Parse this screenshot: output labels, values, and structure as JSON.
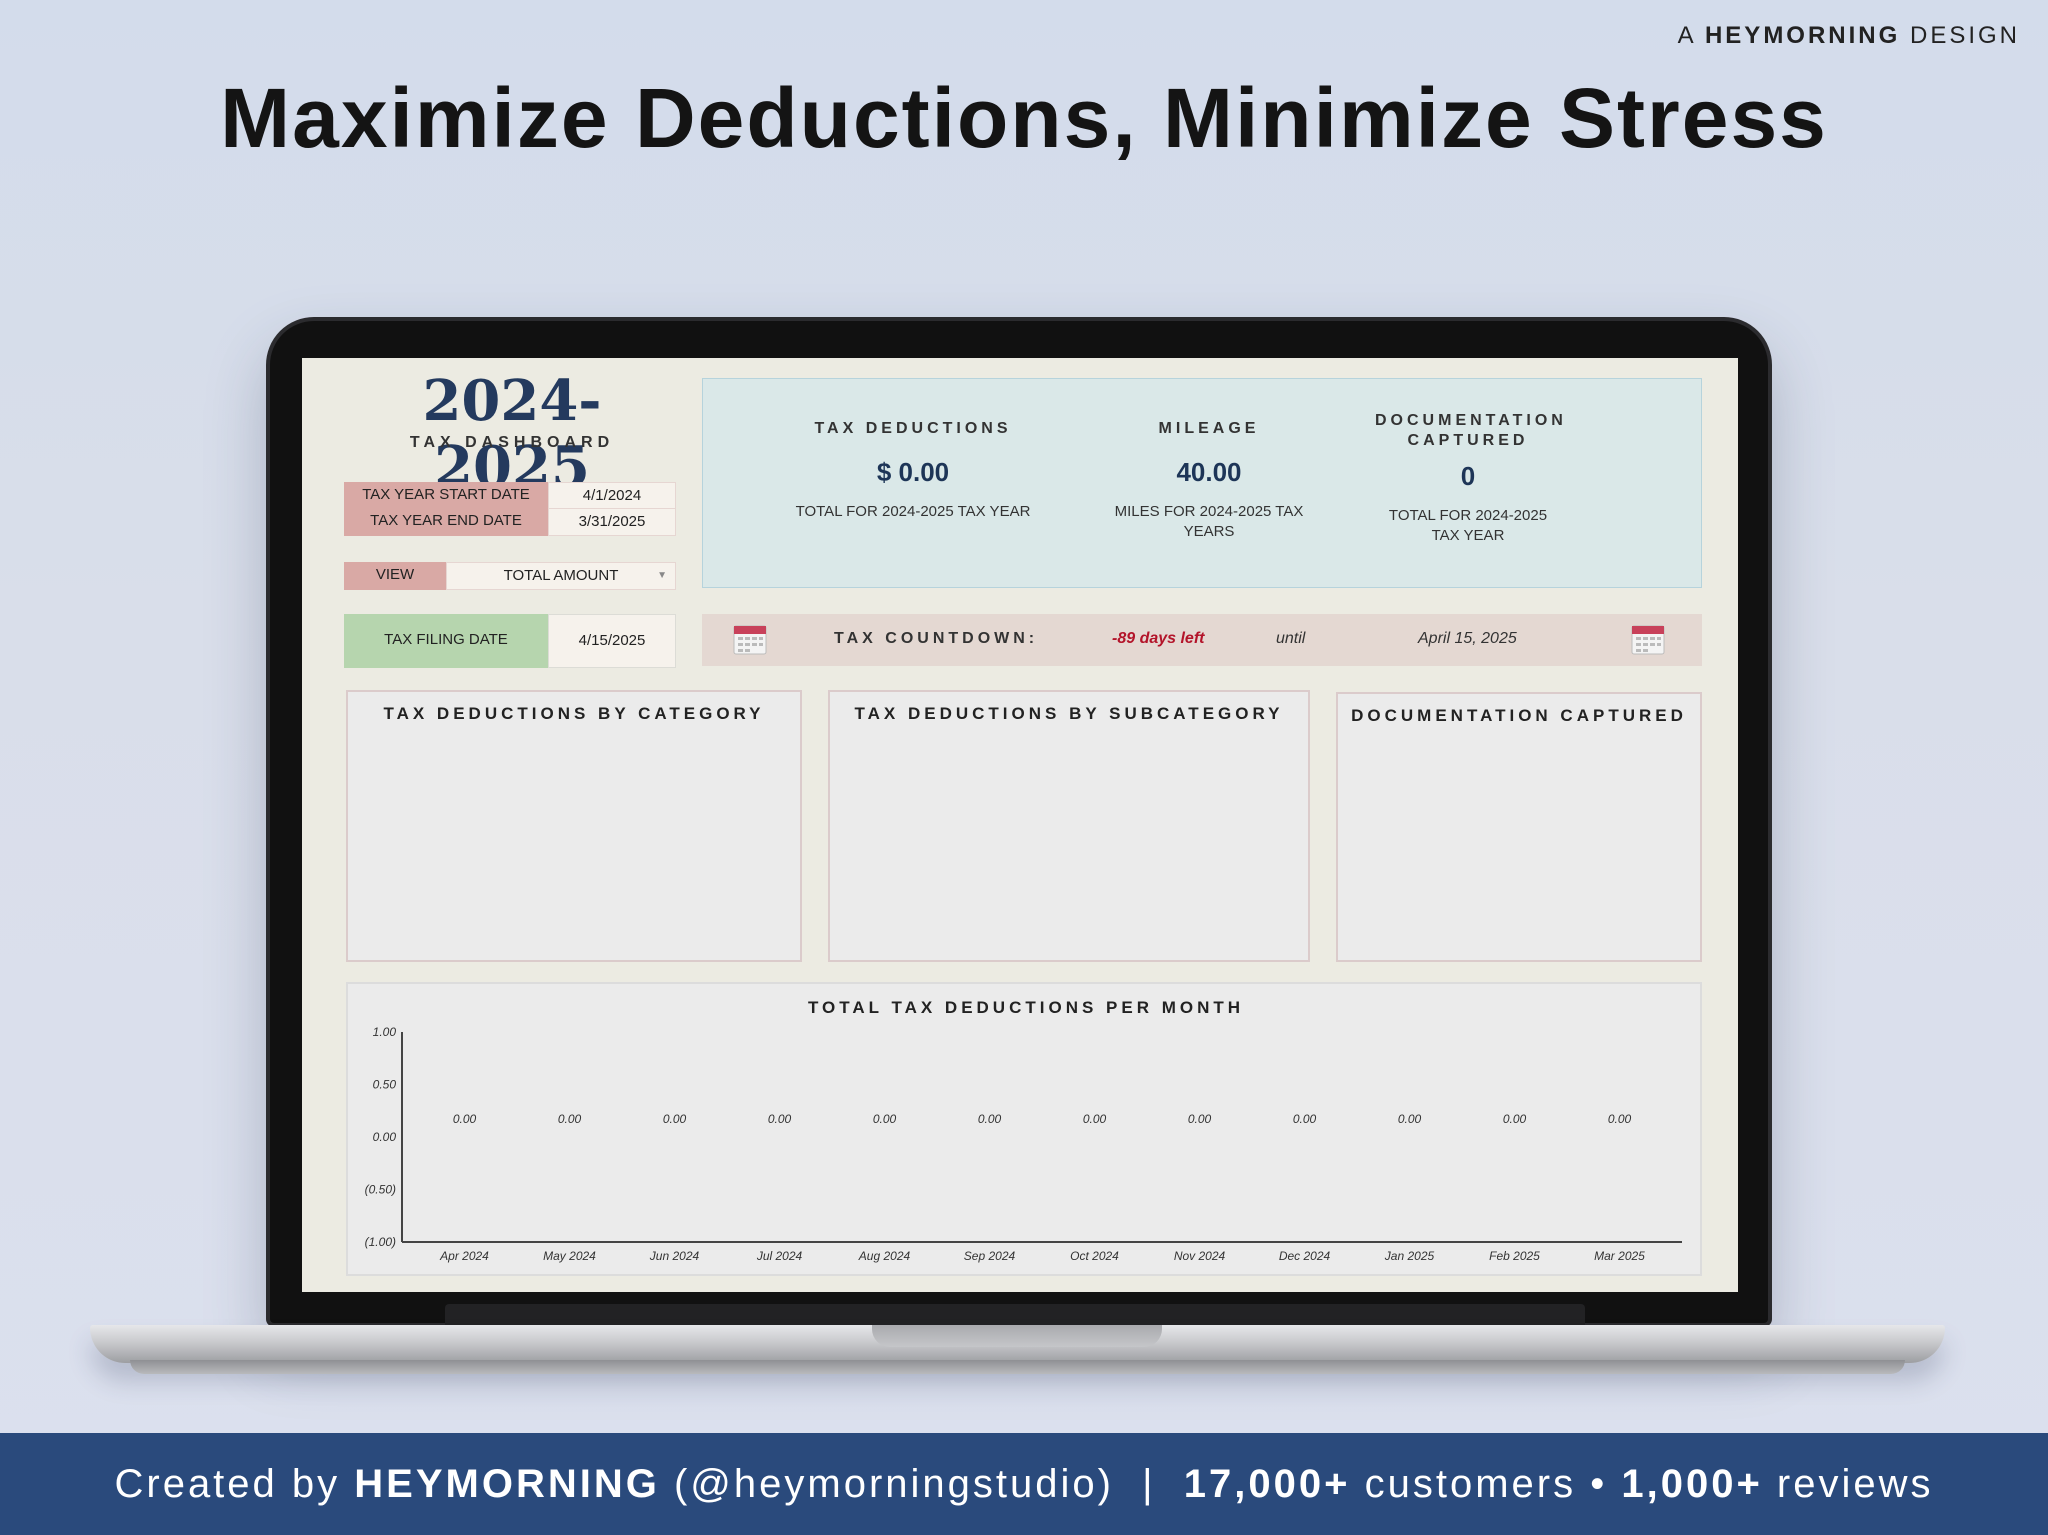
{
  "brand_tag": {
    "prefix": "A",
    "brand": "HEYMORNING",
    "suffix": "DESIGN"
  },
  "headline": "Maximize Deductions, Minimize Stress",
  "dashboard": {
    "year_title": "2024-2025",
    "subtitle": "TAX DASHBOARD",
    "tax_year_start_label": "TAX YEAR START DATE",
    "tax_year_start_value": "4/1/2024",
    "tax_year_end_label": "TAX YEAR END DATE",
    "tax_year_end_value": "3/31/2025",
    "view_label": "VIEW",
    "view_value": "TOTAL AMOUNT",
    "filing_label": "TAX FILING DATE",
    "filing_value": "4/15/2025",
    "stats": [
      {
        "title": "TAX DEDUCTIONS",
        "value": "$ 0.00",
        "caption": "TOTAL FOR 2024-2025 TAX YEAR"
      },
      {
        "title": "MILEAGE",
        "value": "40.00",
        "caption": "MILES FOR 2024-2025 TAX YEARS"
      },
      {
        "title": "DOCUMENTATION CAPTURED",
        "value": "0",
        "caption": "TOTAL FOR 2024-2025 TAX YEAR"
      }
    ],
    "countdown": {
      "label": "TAX COUNTDOWN:",
      "days": "-89 days left",
      "until": "until",
      "date": "April 15, 2025",
      "icon": "calendar-icon",
      "icon_color": "#c8415a"
    },
    "panels": [
      {
        "title": "TAX DEDUCTIONS BY CATEGORY"
      },
      {
        "title": "TAX DEDUCTIONS BY SUBCATEGORY"
      },
      {
        "title": "DOCUMENTATION CAPTURED"
      }
    ]
  },
  "chart_data": {
    "type": "bar",
    "title": "TOTAL TAX DEDUCTIONS PER MONTH",
    "categories": [
      "Apr 2024",
      "May 2024",
      "Jun 2024",
      "Jul 2024",
      "Aug 2024",
      "Sep 2024",
      "Oct 2024",
      "Nov 2024",
      "Dec 2024",
      "Jan 2025",
      "Feb 2025",
      "Mar 2025"
    ],
    "values": [
      0,
      0,
      0,
      0,
      0,
      0,
      0,
      0,
      0,
      0,
      0,
      0
    ],
    "value_labels": [
      "0.00",
      "0.00",
      "0.00",
      "0.00",
      "0.00",
      "0.00",
      "0.00",
      "0.00",
      "0.00",
      "0.00",
      "0.00",
      "0.00"
    ],
    "y_ticks": [
      "1.00",
      "0.50",
      "0.00",
      "(0.50)",
      "(1.00)"
    ],
    "ylim": [
      -1,
      1
    ],
    "xlabel": "",
    "ylabel": "",
    "grid": false
  },
  "footer": {
    "prefix": "Created by ",
    "brand": "HEYMORNING",
    "handle": " (@heymorningstudio)  |  ",
    "customers_count": "17,000+",
    "customers_label": " customers • ",
    "reviews_count": "1,000+",
    "reviews_label": " reviews"
  },
  "colors": {
    "footer_bg": "#2a4a7c",
    "year_title": "#243a5e",
    "countdown_days": "#b3142a",
    "filing_label_bg": "#b6d5ae",
    "date_label_bg": "#d9a9a5",
    "stats_bg": "#dae8e8"
  }
}
